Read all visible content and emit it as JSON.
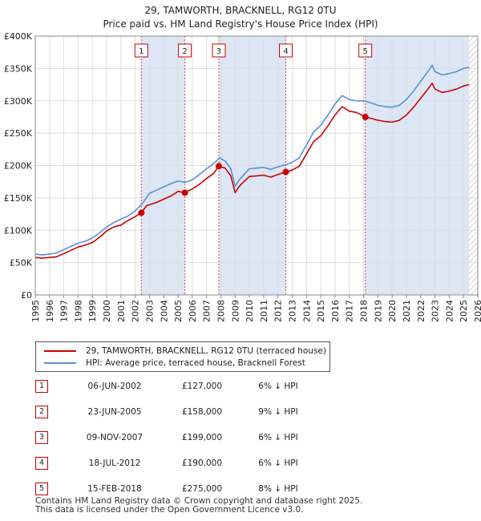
{
  "header": {
    "title_line1": "29, TAMWORTH, BRACKNELL, RG12 0TU",
    "title_line2": "Price paid vs. HM Land Registry's House Price Index (HPI)"
  },
  "colors": {
    "price_line": "#cc0000",
    "hpi_line": "#5b8fd6",
    "shade": "#dde6f5",
    "grid": "#dddddd",
    "marker_border": "#cc0000"
  },
  "legend": {
    "price_label": "29, TAMWORTH, BRACKNELL, RG12 0TU (terraced house)",
    "hpi_label": "HPI: Average price, terraced house, Bracknell Forest"
  },
  "sales": [
    {
      "num": "1",
      "date": "06-JUN-2002",
      "price": "£127,000",
      "hpi_diff": "6% ↓ HPI"
    },
    {
      "num": "2",
      "date": "23-JUN-2005",
      "price": "£158,000",
      "hpi_diff": "9% ↓ HPI"
    },
    {
      "num": "3",
      "date": "09-NOV-2007",
      "price": "£199,000",
      "hpi_diff": "6% ↓ HPI"
    },
    {
      "num": "4",
      "date": "18-JUL-2012",
      "price": "£190,000",
      "hpi_diff": "6% ↓ HPI"
    },
    {
      "num": "5",
      "date": "15-FEB-2018",
      "price": "£275,000",
      "hpi_diff": "8% ↓ HPI"
    }
  ],
  "footer": {
    "line1": "Contains HM Land Registry data © Crown copyright and database right 2025.",
    "line2": "This data is licensed under the Open Government Licence v3.0."
  },
  "chart_data": {
    "type": "line",
    "xlim": [
      1995,
      2026
    ],
    "ylim": [
      0,
      400000
    ],
    "y_ticks": [
      0,
      50000,
      100000,
      150000,
      200000,
      250000,
      300000,
      350000,
      400000
    ],
    "y_tick_labels": [
      "£0",
      "£50K",
      "£100K",
      "£150K",
      "£200K",
      "£250K",
      "£300K",
      "£350K",
      "£400K"
    ],
    "x_ticks": [
      1995,
      1996,
      1997,
      1998,
      1999,
      2000,
      2001,
      2002,
      2003,
      2004,
      2005,
      2006,
      2007,
      2008,
      2009,
      2010,
      2011,
      2012,
      2013,
      2014,
      2015,
      2016,
      2017,
      2018,
      2019,
      2020,
      2021,
      2022,
      2023,
      2024,
      2025,
      2026
    ],
    "x_tick_labels": [
      "1995",
      "1996",
      "1997",
      "1998",
      "1999",
      "2000",
      "2001",
      "2002",
      "2003",
      "2004",
      "2005",
      "2006",
      "2007",
      "2008",
      "2009",
      "2010",
      "2011",
      "2012",
      "2013",
      "2014",
      "2015",
      "2016",
      "2017",
      "2018",
      "2019",
      "2020",
      "2021",
      "2022",
      "2023",
      "2024",
      "2025",
      "2026"
    ],
    "shaded_spans": [
      [
        2002.43,
        2005.48
      ],
      [
        2007.86,
        2012.55
      ],
      [
        2018.12,
        2025.4
      ]
    ],
    "hatch_from": 2025.4,
    "series": [
      {
        "name": "HPI: Average price, terraced house, Bracknell Forest",
        "x": [
          1995,
          1995.5,
          1996,
          1996.5,
          1997,
          1997.5,
          1998,
          1998.5,
          1999,
          1999.5,
          2000,
          2000.5,
          2001,
          2001.5,
          2002,
          2002.5,
          2003,
          2003.5,
          2004,
          2004.5,
          2005,
          2005.5,
          2006,
          2006.5,
          2007,
          2007.5,
          2007.9,
          2008.3,
          2008.7,
          2009.0,
          2009.3,
          2009.7,
          2010,
          2010.5,
          2011,
          2011.5,
          2012,
          2012.5,
          2013,
          2013.5,
          2014,
          2014.5,
          2015,
          2015.5,
          2016,
          2016.5,
          2017,
          2017.5,
          2018,
          2018.5,
          2019,
          2019.5,
          2020,
          2020.5,
          2021,
          2021.5,
          2022,
          2022.5,
          2022.8,
          2023,
          2023.5,
          2024,
          2024.5,
          2025,
          2025.4
        ],
        "values": [
          63000,
          62000,
          63000,
          65000,
          70000,
          75000,
          80000,
          83000,
          88000,
          96000,
          105000,
          112000,
          117000,
          122000,
          130000,
          141000,
          157000,
          162000,
          167000,
          172000,
          176000,
          174000,
          178000,
          186000,
          195000,
          203000,
          212000,
          207000,
          195000,
          168000,
          178000,
          188000,
          195000,
          196000,
          197000,
          194000,
          198000,
          201000,
          205000,
          212000,
          232000,
          252000,
          262000,
          278000,
          295000,
          308000,
          302000,
          300000,
          300000,
          297000,
          293000,
          291000,
          290000,
          293000,
          302000,
          315000,
          330000,
          345000,
          355000,
          345000,
          340000,
          342000,
          345000,
          350000,
          352000
        ]
      },
      {
        "name": "29, TAMWORTH, BRACKNELL, RG12 0TU (terraced house)",
        "x": [
          1995,
          1995.5,
          1996,
          1996.5,
          1997,
          1997.5,
          1998,
          1998.5,
          1999,
          1999.5,
          2000,
          2000.5,
          2001,
          2001.5,
          2002,
          2002.43,
          2002.8,
          2003.5,
          2004,
          2004.5,
          2005,
          2005.48,
          2006,
          2006.5,
          2007,
          2007.5,
          2007.86,
          2008.3,
          2008.7,
          2009.0,
          2009.3,
          2009.7,
          2010,
          2010.5,
          2011,
          2011.5,
          2012,
          2012.55,
          2013,
          2013.5,
          2014,
          2014.5,
          2015,
          2015.5,
          2016,
          2016.5,
          2017,
          2017.5,
          2018.12,
          2018.5,
          2019,
          2019.5,
          2020,
          2020.5,
          2021,
          2021.5,
          2022,
          2022.5,
          2022.8,
          2023,
          2023.5,
          2024,
          2024.5,
          2025,
          2025.4
        ],
        "values": [
          58000,
          57000,
          58000,
          59000,
          64000,
          69000,
          74000,
          77000,
          81000,
          89000,
          99000,
          105000,
          108000,
          115000,
          121000,
          127000,
          138000,
          143000,
          148000,
          153000,
          160000,
          158000,
          164000,
          171000,
          180000,
          188000,
          199000,
          196000,
          184000,
          158000,
          168000,
          177000,
          183000,
          184000,
          185000,
          182000,
          186000,
          190000,
          193000,
          199000,
          218000,
          237000,
          246000,
          261000,
          278000,
          291000,
          284000,
          282000,
          275000,
          273000,
          270000,
          268000,
          267000,
          270000,
          278000,
          290000,
          304000,
          318000,
          327000,
          318000,
          313000,
          315000,
          318000,
          323000,
          325000
        ]
      }
    ],
    "sale_markers": [
      {
        "label": "1",
        "x": 2002.43,
        "value": 127000
      },
      {
        "label": "2",
        "x": 2005.48,
        "value": 158000
      },
      {
        "label": "3",
        "x": 2007.86,
        "value": 199000
      },
      {
        "label": "4",
        "x": 2012.55,
        "value": 190000
      },
      {
        "label": "5",
        "x": 2018.12,
        "value": 275000
      }
    ]
  }
}
